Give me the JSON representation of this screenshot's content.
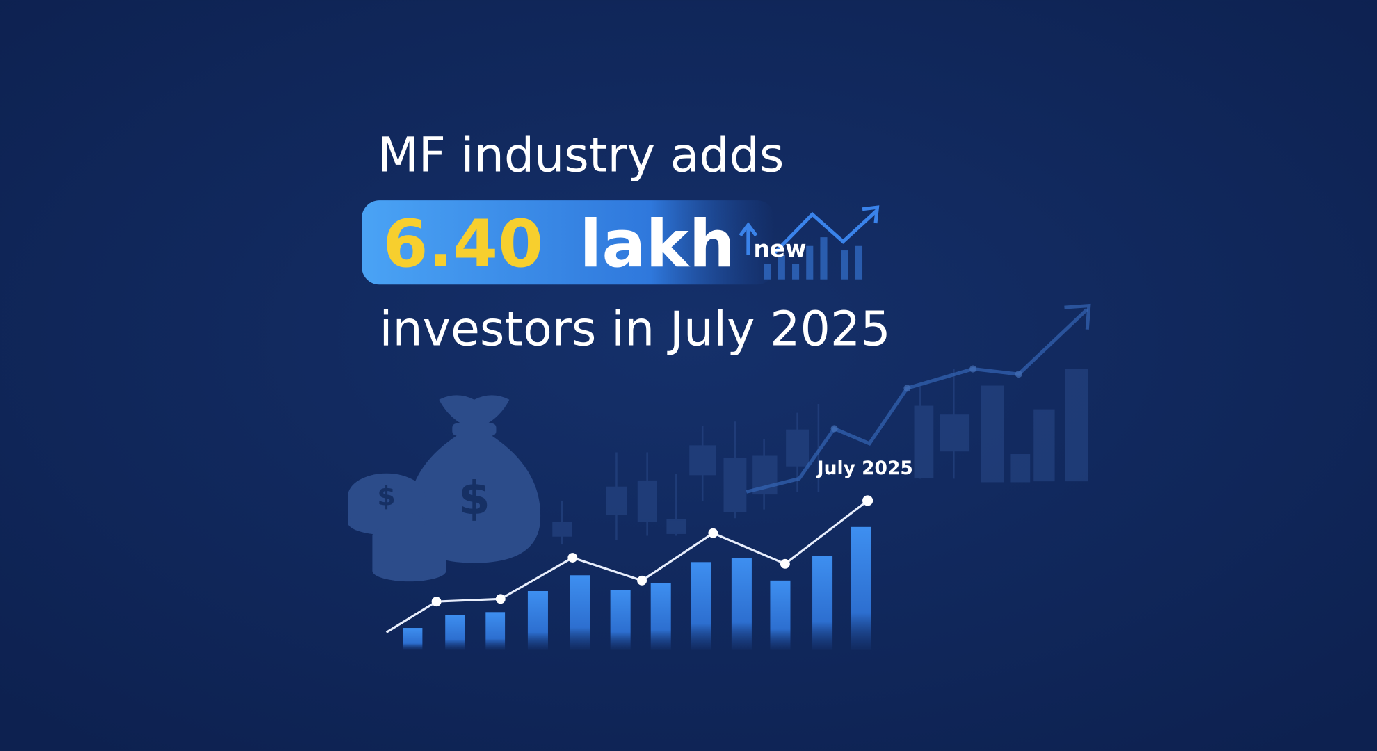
{
  "headline": {
    "line1": "MF industry adds",
    "number": "6.40",
    "unit": "lakh",
    "tag": "new",
    "line3": "investors in July 2025"
  },
  "graphic": {
    "point_label": "July 2025"
  }
}
